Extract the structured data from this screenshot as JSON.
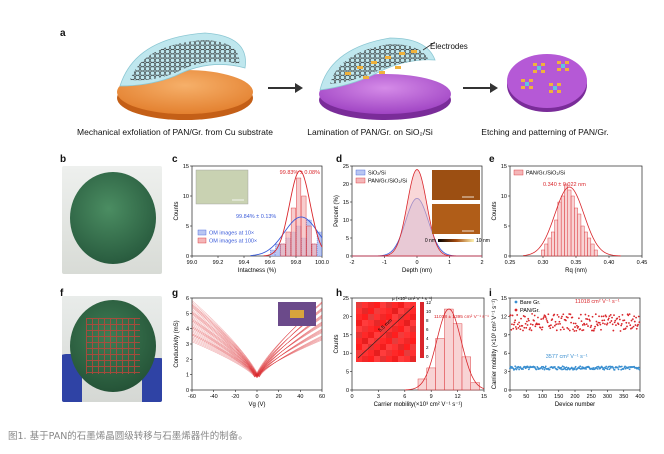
{
  "panel_a": {
    "label": "a",
    "electrodes_label": "Electrodes",
    "step1_caption": "Mechanical exfoliation of PAN/Gr. from Cu substrate",
    "step2_caption": "Lamination of PAN/Gr. on SiO₂/Si",
    "step3_caption": "Etching and patterning of PAN/Gr."
  },
  "panel_labels": {
    "b": "b",
    "c": "c",
    "d": "d",
    "e": "e",
    "f": "f",
    "g": "g",
    "h": "h",
    "i": "i"
  },
  "figure_caption": "图1. 基于PAN的石墨烯晶圆级转移与石墨烯器件的制备。",
  "colors": {
    "red": "#d9262b",
    "blue": "#3a5bd9",
    "pink": "#f4b6b8",
    "lightblue": "#b9c6f2",
    "wafer_green": "#2f6e4a",
    "glove_blue": "#3047a8"
  },
  "chart_data": [
    {
      "id": "c",
      "type": "bar",
      "xlabel": "Intactness (%)",
      "ylabel": "Counts",
      "xticks": [
        "99.0",
        "99.2",
        "99.4",
        "99.6",
        "99.8",
        "100.0"
      ],
      "yticks": [
        "0",
        "5",
        "10",
        "15"
      ],
      "xlim": [
        99.0,
        100.0
      ],
      "ylim": [
        0,
        15
      ],
      "annotations": [
        "99.83% ± 0.08%",
        "99.84% ± 0.13%"
      ],
      "legend": [
        "OM images at 10×",
        "OM images at 100×"
      ],
      "series": [
        {
          "name": "OM images at 10×",
          "x": [
            99.62,
            99.66,
            99.7,
            99.74,
            99.78,
            99.82,
            99.86,
            99.9,
            99.94,
            99.98
          ],
          "values": [
            1,
            2,
            2,
            3,
            4,
            5,
            3,
            6,
            2,
            4
          ]
        },
        {
          "name": "OM images at 100×",
          "x": [
            99.7,
            99.74,
            99.78,
            99.82,
            99.86,
            99.9,
            99.94
          ],
          "values": [
            2,
            4,
            8,
            13,
            10,
            5,
            2
          ]
        }
      ]
    },
    {
      "id": "d",
      "type": "area",
      "xlabel": "Depth (nm)",
      "ylabel": "Percent (%)",
      "xticks": [
        "-2",
        "-1",
        "0",
        "1",
        "2"
      ],
      "yticks": [
        "0",
        "5",
        "10",
        "15",
        "20",
        "25"
      ],
      "xlim": [
        -2,
        2
      ],
      "ylim": [
        0,
        25
      ],
      "legend": [
        "SiO₂/Si",
        "PAN/Gr./SiO₂/Si"
      ],
      "colorbar": [
        "0 nm",
        "10 nm"
      ],
      "series": [
        {
          "name": "SiO₂/Si",
          "mean": 0.0,
          "sd": 0.35,
          "peak": 16
        },
        {
          "name": "PAN/Gr./SiO₂/Si",
          "mean": 0.0,
          "sd": 0.3,
          "peak": 24
        }
      ]
    },
    {
      "id": "e",
      "type": "bar",
      "xlabel": "Rq (nm)",
      "ylabel": "Counts",
      "xticks": [
        "0.25",
        "0.30",
        "0.35",
        "0.40",
        "0.45"
      ],
      "yticks": [
        "0",
        "5",
        "10",
        "15"
      ],
      "xlim": [
        0.25,
        0.45
      ],
      "ylim": [
        0,
        15
      ],
      "annotation": "0.340 ± 0.022 nm",
      "legend": [
        "PAN/Gr./SiO₂/Si"
      ],
      "x": [
        0.3,
        0.305,
        0.31,
        0.315,
        0.32,
        0.325,
        0.33,
        0.335,
        0.34,
        0.345,
        0.35,
        0.355,
        0.36,
        0.365,
        0.37,
        0.375,
        0.38
      ],
      "values": [
        1,
        2,
        3,
        4,
        6,
        9,
        10,
        12,
        11,
        10,
        8,
        7,
        5,
        4,
        3,
        2,
        1
      ]
    },
    {
      "id": "g",
      "type": "line",
      "xlabel": "Vg (V)",
      "ylabel": "Conductivity (mS)",
      "xticks": [
        "-60",
        "-40",
        "-20",
        "0",
        "20",
        "40",
        "60"
      ],
      "yticks": [
        "0",
        "1",
        "2",
        "3",
        "4",
        "5",
        "6"
      ],
      "xlim": [
        -60,
        60
      ],
      "ylim": [
        0,
        6
      ],
      "description_values": {
        "dirac_point_V": 0,
        "min_conductivity_mS": 0.8,
        "max_conductivity_mS_range": [
          3.2,
          5.8
        ]
      }
    },
    {
      "id": "h",
      "type": "bar",
      "xlabel": "Carrier mobility(×10³ cm² V⁻¹ s⁻¹)",
      "ylabel": "Counts",
      "xticks": [
        "0",
        "3",
        "6",
        "9",
        "12",
        "15"
      ],
      "yticks": [
        "0",
        "5",
        "10",
        "15",
        "20",
        "25"
      ],
      "xlim": [
        0,
        15
      ],
      "ylim": [
        0,
        25
      ],
      "annotation": "11018 ± 1395 cm² V⁻¹ s⁻¹",
      "colorbar_title": "μ (×10³ cm² V⁻¹ s⁻¹)",
      "colorbar_ticks": [
        "12",
        "10",
        "8",
        "6",
        "4",
        "2",
        "0"
      ],
      "map_label": "5.5 mm",
      "x": [
        8,
        9,
        10,
        11,
        12,
        13,
        14
      ],
      "values": [
        3,
        6,
        14,
        22,
        18,
        9,
        2
      ]
    },
    {
      "id": "i",
      "type": "scatter",
      "xlabel": "Device number",
      "ylabel": "Carrier mobility (×10³ cm² V⁻¹ s⁻¹)",
      "xticks": [
        "0",
        "50",
        "100",
        "150",
        "200",
        "250",
        "300",
        "350",
        "400"
      ],
      "yticks": [
        "0",
        "3",
        "6",
        "9",
        "12",
        "15"
      ],
      "xlim": [
        0,
        400
      ],
      "ylim": [
        0,
        15
      ],
      "legend": [
        "Bare Gr.",
        "PAN/Gr."
      ],
      "annotations": [
        "11018 cm² V⁻¹ s⁻¹",
        "3577 cm² V⁻¹ s⁻¹"
      ],
      "series": [
        {
          "name": "Bare Gr.",
          "mean": 3.577,
          "spread": 0.3,
          "n": 400
        },
        {
          "name": "PAN/Gr.",
          "mean": 11.018,
          "spread": 1.4,
          "n": 400
        }
      ]
    }
  ]
}
